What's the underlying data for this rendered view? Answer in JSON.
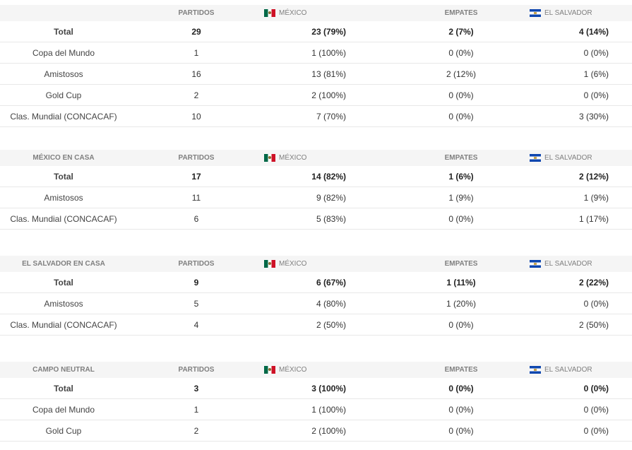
{
  "columns": {
    "partidos": "PARTIDOS",
    "mexico": "MÉXICO",
    "empates": "EMPATES",
    "el_salvador": "EL SALVADOR"
  },
  "flags": {
    "mexico": "mexico-flag-icon",
    "el_salvador": "el-salvador-flag-icon"
  },
  "sections": [
    {
      "title": "",
      "rows": [
        {
          "label": "Total",
          "partidos": "29",
          "mexico": "23 (79%)",
          "empates": "2 (7%)",
          "el_salvador": "4 (14%)"
        },
        {
          "label": "Copa del Mundo",
          "partidos": "1",
          "mexico": "1 (100%)",
          "empates": "0 (0%)",
          "el_salvador": "0 (0%)"
        },
        {
          "label": "Amistosos",
          "partidos": "16",
          "mexico": "13 (81%)",
          "empates": "2 (12%)",
          "el_salvador": "1 (6%)"
        },
        {
          "label": "Gold Cup",
          "partidos": "2",
          "mexico": "2 (100%)",
          "empates": "0 (0%)",
          "el_salvador": "0 (0%)"
        },
        {
          "label": "Clas. Mundial (CONCACAF)",
          "partidos": "10",
          "mexico": "7 (70%)",
          "empates": "0 (0%)",
          "el_salvador": "3 (30%)"
        }
      ]
    },
    {
      "title": "MÉXICO EN CASA",
      "rows": [
        {
          "label": "Total",
          "partidos": "17",
          "mexico": "14 (82%)",
          "empates": "1 (6%)",
          "el_salvador": "2 (12%)"
        },
        {
          "label": "Amistosos",
          "partidos": "11",
          "mexico": "9 (82%)",
          "empates": "1 (9%)",
          "el_salvador": "1 (9%)"
        },
        {
          "label": "Clas. Mundial (CONCACAF)",
          "partidos": "6",
          "mexico": "5 (83%)",
          "empates": "0 (0%)",
          "el_salvador": "1 (17%)"
        }
      ]
    },
    {
      "title": "EL SALVADOR EN CASA",
      "rows": [
        {
          "label": "Total",
          "partidos": "9",
          "mexico": "6 (67%)",
          "empates": "1 (11%)",
          "el_salvador": "2 (22%)"
        },
        {
          "label": "Amistosos",
          "partidos": "5",
          "mexico": "4 (80%)",
          "empates": "1 (20%)",
          "el_salvador": "0 (0%)"
        },
        {
          "label": "Clas. Mundial (CONCACAF)",
          "partidos": "4",
          "mexico": "2 (50%)",
          "empates": "0 (0%)",
          "el_salvador": "2 (50%)"
        }
      ]
    },
    {
      "title": "CAMPO NEUTRAL",
      "rows": [
        {
          "label": "Total",
          "partidos": "3",
          "mexico": "3 (100%)",
          "empates": "0 (0%)",
          "el_salvador": "0 (0%)"
        },
        {
          "label": "Copa del Mundo",
          "partidos": "1",
          "mexico": "1 (100%)",
          "empates": "0 (0%)",
          "el_salvador": "0 (0%)"
        },
        {
          "label": "Gold Cup",
          "partidos": "2",
          "mexico": "2 (100%)",
          "empates": "0 (0%)",
          "el_salvador": "0 (0%)"
        }
      ]
    }
  ]
}
